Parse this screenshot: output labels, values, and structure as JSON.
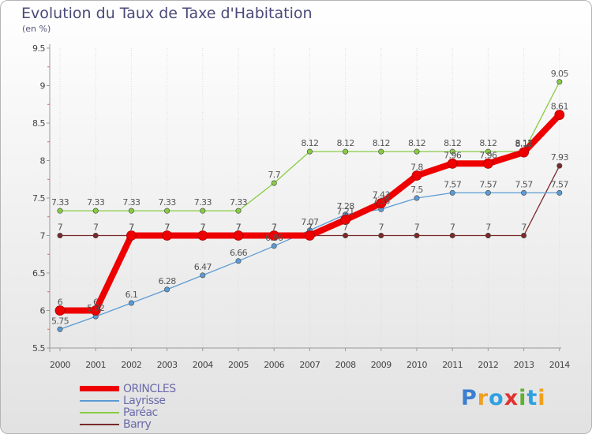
{
  "chart_data": {
    "type": "line",
    "title": "Evolution du Taux de Taxe d'Habitation",
    "subtitle": "(en %)",
    "xlabel": "",
    "ylabel": "",
    "x": [
      "2000",
      "2001",
      "2002",
      "2003",
      "2004",
      "2005",
      "2006",
      "2007",
      "2008",
      "2009",
      "2010",
      "2011",
      "2012",
      "2013",
      "2014"
    ],
    "ylim": [
      5.5,
      9.5
    ],
    "yticks": [
      "5.5",
      "6",
      "6.5",
      "7",
      "7.5",
      "8",
      "8.5",
      "9",
      "9.5"
    ],
    "grid": "vertical",
    "legend_position": "bottom-left",
    "series": [
      {
        "name": "ORINCLES",
        "color": "#ee0000",
        "values": [
          6,
          6,
          7,
          7,
          7,
          7,
          7,
          7,
          7.21,
          7.43,
          7.8,
          7.96,
          7.96,
          8.11,
          8.61
        ],
        "labels": [
          "6",
          "6",
          "7",
          "7",
          "7",
          "7",
          "7",
          "7",
          "7.21",
          "7.43",
          "7.8",
          "7.96",
          "7.96",
          "8.11",
          "8.61"
        ]
      },
      {
        "name": "Layrisse",
        "color": "#5b9bd5",
        "values": [
          5.75,
          5.92,
          6.1,
          6.28,
          6.47,
          6.66,
          6.86,
          7.07,
          7.28,
          7.35,
          7.5,
          7.57,
          7.57,
          7.57,
          7.57
        ],
        "labels": [
          "5.75",
          "5.92",
          "6.1",
          "6.28",
          "6.47",
          "6.66",
          "6.86",
          "7.07",
          "7.28",
          "7.35",
          "7.5",
          "7.57",
          "7.57",
          "7.57",
          "7.57"
        ]
      },
      {
        "name": "Paréac",
        "color": "#88cc44",
        "values": [
          7.33,
          7.33,
          7.33,
          7.33,
          7.33,
          7.33,
          7.7,
          8.12,
          8.12,
          8.12,
          8.12,
          8.12,
          8.12,
          8.12,
          9.05
        ],
        "labels": [
          "7.33",
          "7.33",
          "7.33",
          "7.33",
          "7.33",
          "7.33",
          "7.7",
          "8.12",
          "8.12",
          "8.12",
          "8.12",
          "8.12",
          "8.12",
          "8.12",
          "9.05"
        ]
      },
      {
        "name": "Barry",
        "color": "#7a2a2a",
        "values": [
          7,
          7,
          7,
          7,
          7,
          7,
          7,
          7,
          7,
          7,
          7,
          7,
          7,
          7,
          7.93
        ],
        "labels": [
          "7",
          "7",
          "7",
          "7",
          "7",
          "7",
          "7",
          "7",
          "7",
          "7",
          "7",
          "7",
          "7",
          "7",
          "7.93"
        ]
      }
    ]
  },
  "brand": {
    "text": "Proxiti",
    "letters": [
      "P",
      "r",
      "o",
      "x",
      "i",
      "t",
      "i"
    ],
    "colors": [
      "#3a7fd0",
      "#f0a020",
      "#30a0e0",
      "#e03030",
      "#60b030",
      "#30a0e0",
      "#f0a020"
    ]
  }
}
